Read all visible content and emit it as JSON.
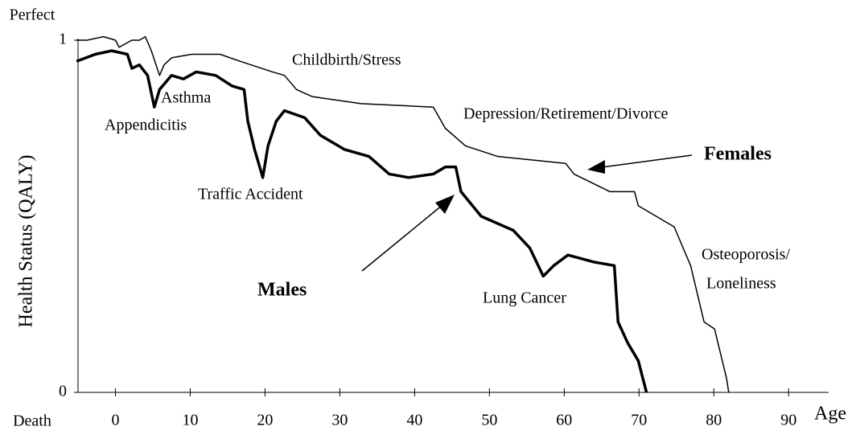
{
  "chart_data": {
    "type": "line",
    "y_label": "Health Status (QALY)",
    "x_label": "Age",
    "y_top_label": "Perfect",
    "y_bottom_label": "Death",
    "xlim": [
      -5,
      96
    ],
    "xticks": [
      0,
      10,
      20,
      30,
      40,
      50,
      60,
      70,
      80,
      90
    ],
    "ylim": [
      0,
      1
    ],
    "yticks": [
      0,
      1
    ],
    "annotations": [
      "Childbirth/Stress",
      "Asthma",
      "Appendicitis",
      "Traffic Accident",
      "Depression/Retirement/Divorce",
      "Osteoporosis/",
      "Loneliness",
      "Lung Cancer"
    ],
    "series": [
      {
        "name": "Females",
        "color": "#000000",
        "x": [
          -5.2,
          -3.8,
          -1.6,
          0,
          0.5,
          2.2,
          3.2,
          4.0,
          4.8,
          5.9,
          6.5,
          7.5,
          10.2,
          14.0,
          16.7,
          21.0,
          22.6,
          24.2,
          26.3,
          32.8,
          42.5,
          44.1,
          46.8,
          51.1,
          60.2,
          61.3,
          66.1,
          69.4,
          69.9,
          74.7,
          76.9,
          78.7,
          80.1,
          81.7,
          82.0
        ],
        "values": [
          1.0,
          1.0,
          1.01,
          1.0,
          0.98,
          1.0,
          1.0,
          1.01,
          0.97,
          0.9,
          0.93,
          0.95,
          0.96,
          0.96,
          0.94,
          0.91,
          0.9,
          0.86,
          0.84,
          0.82,
          0.81,
          0.75,
          0.7,
          0.67,
          0.65,
          0.62,
          0.57,
          0.57,
          0.53,
          0.47,
          0.36,
          0.2,
          0.18,
          0.04,
          0
        ]
      },
      {
        "name": "Males",
        "color": "#000000",
        "x": [
          -5.2,
          -2.7,
          -0.5,
          1.6,
          2.2,
          3.2,
          4.3,
          5.2,
          5.9,
          7.5,
          9.1,
          10.8,
          13.4,
          15.6,
          17.2,
          17.7,
          18.6,
          19.7,
          20.4,
          21.5,
          22.6,
          25.3,
          27.4,
          30.6,
          33.9,
          36.6,
          39.2,
          42.5,
          44.1,
          45.5,
          46.2,
          48.9,
          53.2,
          55.4,
          57.2,
          58.6,
          60.5,
          64.0,
          66.7,
          67.2,
          68.5,
          69.9,
          71.0
        ],
        "values": [
          0.94,
          0.96,
          0.97,
          0.96,
          0.92,
          0.93,
          0.9,
          0.81,
          0.86,
          0.9,
          0.89,
          0.91,
          0.9,
          0.87,
          0.86,
          0.77,
          0.69,
          0.61,
          0.7,
          0.77,
          0.8,
          0.78,
          0.73,
          0.69,
          0.67,
          0.62,
          0.61,
          0.62,
          0.64,
          0.64,
          0.57,
          0.5,
          0.46,
          0.41,
          0.33,
          0.36,
          0.39,
          0.37,
          0.36,
          0.2,
          0.14,
          0.09,
          0
        ]
      }
    ]
  }
}
